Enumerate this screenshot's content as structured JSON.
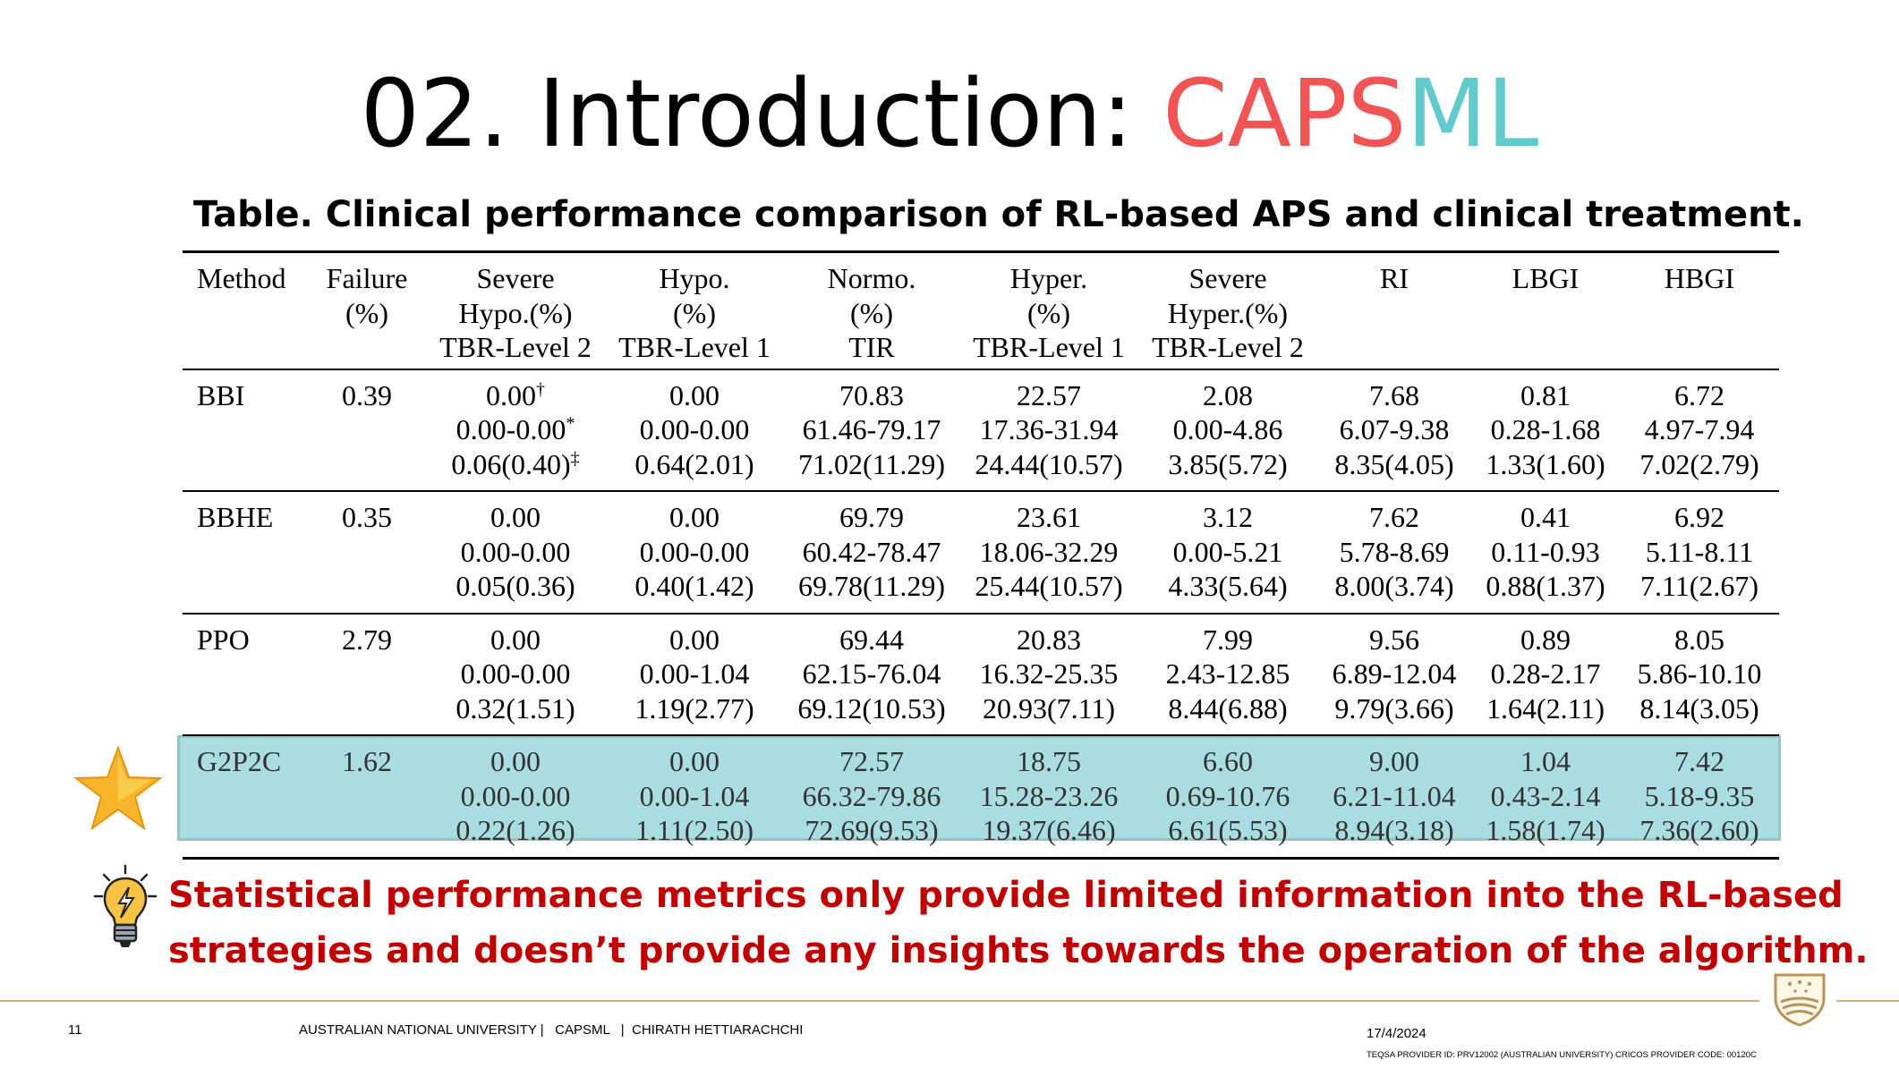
{
  "title": {
    "prefix": "02. Introduction: ",
    "accent_a": "CAPS",
    "accent_b": "ML",
    "accent_a_color": "#f05454",
    "accent_b_color": "#62c9cc"
  },
  "table_caption": "Table. Clinical performance comparison of RL-based APS and clinical treatment.",
  "table": {
    "headers": [
      [
        "Method"
      ],
      [
        "Failure",
        "(%)"
      ],
      [
        "Severe",
        "Hypo.(%)",
        "TBR-Level 2"
      ],
      [
        "Hypo.",
        "(%)",
        "TBR-Level 1"
      ],
      [
        "Normo.",
        "(%)",
        "TIR"
      ],
      [
        "Hyper.",
        "(%)",
        "TBR-Level 1"
      ],
      [
        "Severe",
        "Hyper.(%)",
        "TBR-Level 2"
      ],
      [
        "RI"
      ],
      [
        "LBGI"
      ],
      [
        "HBGI"
      ]
    ],
    "rows": [
      {
        "method": "BBI",
        "failure": "0.39",
        "cells": [
          [
            "0.00",
            "0.00-0.00",
            "0.06(0.40)"
          ],
          [
            "0.00",
            "0.00-0.00",
            "0.64(2.01)"
          ],
          [
            "70.83",
            "61.46-79.17",
            "71.02(11.29)"
          ],
          [
            "22.57",
            "17.36-31.94",
            "24.44(10.57)"
          ],
          [
            "2.08",
            "0.00-4.86",
            "3.85(5.72)"
          ],
          [
            "7.68",
            "6.07-9.38",
            "8.35(4.05)"
          ],
          [
            "0.81",
            "0.28-1.68",
            "1.33(1.60)"
          ],
          [
            "6.72",
            "4.97-7.94",
            "7.02(2.79)"
          ]
        ],
        "marks": [
          "†",
          "*",
          "‡"
        ]
      },
      {
        "method": "BBHE",
        "failure": "0.35",
        "cells": [
          [
            "0.00",
            "0.00-0.00",
            "0.05(0.36)"
          ],
          [
            "0.00",
            "0.00-0.00",
            "0.40(1.42)"
          ],
          [
            "69.79",
            "60.42-78.47",
            "69.78(11.29)"
          ],
          [
            "23.61",
            "18.06-32.29",
            "25.44(10.57)"
          ],
          [
            "3.12",
            "0.00-5.21",
            "4.33(5.64)"
          ],
          [
            "7.62",
            "5.78-8.69",
            "8.00(3.74)"
          ],
          [
            "0.41",
            "0.11-0.93",
            "0.88(1.37)"
          ],
          [
            "6.92",
            "5.11-8.11",
            "7.11(2.67)"
          ]
        ]
      },
      {
        "method": "PPO",
        "failure": "2.79",
        "cells": [
          [
            "0.00",
            "0.00-0.00",
            "0.32(1.51)"
          ],
          [
            "0.00",
            "0.00-1.04",
            "1.19(2.77)"
          ],
          [
            "69.44",
            "62.15-76.04",
            "69.12(10.53)"
          ],
          [
            "20.83",
            "16.32-25.35",
            "20.93(7.11)"
          ],
          [
            "7.99",
            "2.43-12.85",
            "8.44(6.88)"
          ],
          [
            "9.56",
            "6.89-12.04",
            "9.79(3.66)"
          ],
          [
            "0.89",
            "0.28-2.17",
            "1.64(2.11)"
          ],
          [
            "8.05",
            "5.86-10.10",
            "8.14(3.05)"
          ]
        ]
      },
      {
        "method": "G2P2C",
        "failure": "1.62",
        "cells": [
          [
            "0.00",
            "0.00-0.00",
            "0.22(1.26)"
          ],
          [
            "0.00",
            "0.00-1.04",
            "1.11(2.50)"
          ],
          [
            "72.57",
            "66.32-79.86",
            "72.69(9.53)"
          ],
          [
            "18.75",
            "15.28-23.26",
            "19.37(6.46)"
          ],
          [
            "6.60",
            "0.69-10.76",
            "6.61(5.53)"
          ],
          [
            "9.00",
            "6.21-11.04",
            "8.94(3.18)"
          ],
          [
            "1.04",
            "0.43-2.14",
            "1.58(1.74)"
          ],
          [
            "7.42",
            "5.18-9.35",
            "7.36(2.60)"
          ]
        ],
        "highlight": true
      }
    ],
    "highlight_color": "#a9dde1"
  },
  "callout": {
    "line1": "Statistical performance metrics only provide limited information into the RL-based",
    "line2": "strategies and doesn’t provide any insights towards the operation of the algorithm.",
    "color": "#c00000",
    "icon": "lightbulb-icon"
  },
  "highlight_icon": "star-icon",
  "footer": {
    "page_number": "11",
    "info": "AUSTRALIAN NATIONAL UNIVERSITY |   CAPSML   |  CHIRATH HETTIARACHCHI",
    "date": "17/4/2024",
    "teqsa": "TEQSA PROVIDER ID: PRV12002 (AUSTRALIAN UNIVERSITY) CRICOS PROVIDER CODE: 00120C",
    "logo": "anu-crest-icon"
  }
}
